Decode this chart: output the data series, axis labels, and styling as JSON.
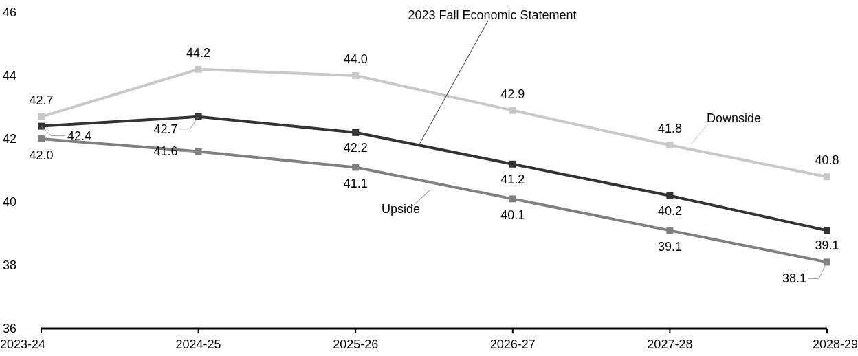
{
  "chart_data": {
    "type": "line",
    "categories": [
      "2023-24",
      "2024-25",
      "2025-26",
      "2026-27",
      "2027-28",
      "2028-29"
    ],
    "series": [
      {
        "name": "Downside",
        "color": "#c8c8c8",
        "values": [
          42.7,
          44.2,
          44.0,
          42.9,
          41.8,
          40.8
        ],
        "value_labels": [
          "42.7",
          "44.2",
          "44.0",
          "42.9",
          "41.8",
          "40.8"
        ]
      },
      {
        "name": "2023 Fall Economic Statement",
        "color": "#333333",
        "values": [
          42.4,
          42.7,
          42.2,
          41.2,
          40.2,
          39.1
        ],
        "value_labels": [
          "42.4",
          "42.7",
          "42.2",
          "41.2",
          "40.2",
          "39.1"
        ]
      },
      {
        "name": "Upside",
        "color": "#808080",
        "values": [
          42.0,
          41.6,
          41.1,
          40.1,
          39.1,
          38.1
        ],
        "value_labels": [
          "42.0",
          "41.6",
          "41.1",
          "40.1",
          "39.1",
          "38.1"
        ]
      }
    ],
    "ylim": [
      36,
      46
    ],
    "yticks": [
      36,
      38,
      40,
      42,
      44,
      46
    ],
    "grid": false,
    "marker": "square",
    "line_style": "solid"
  }
}
